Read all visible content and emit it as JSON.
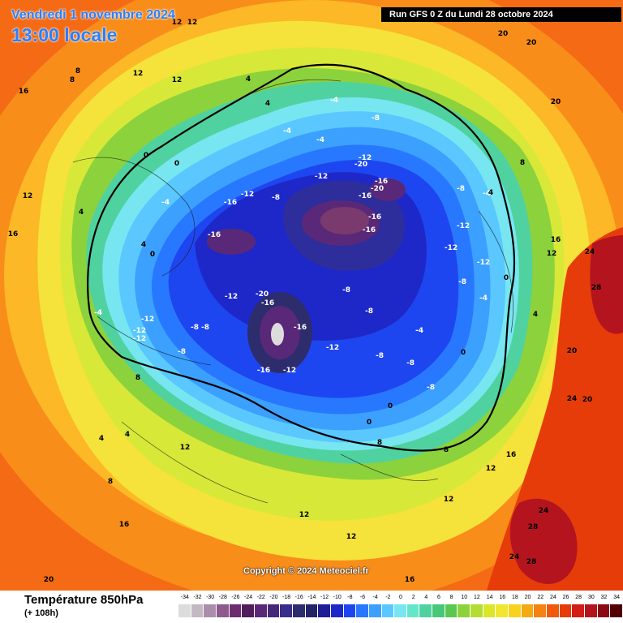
{
  "header": {
    "date": "Vendredi 1 novembre 2024",
    "time": "13:00 locale",
    "run": "Run GFS 0 Z du Lundi 28 octobre 2024"
  },
  "copyright": "Copyright © 2024 Meteociel.fr",
  "footer": {
    "parameter": "Température 850hPa",
    "lead_time": "(+ 108h)"
  },
  "legend": {
    "values": [
      "-34",
      "-32",
      "-30",
      "-28",
      "-26",
      "-24",
      "-22",
      "-20",
      "-18",
      "-16",
      "-14",
      "-12",
      "-10",
      "-8",
      "-6",
      "-4",
      "-2",
      "0",
      "2",
      "4",
      "6",
      "8",
      "10",
      "12",
      "14",
      "16",
      "18",
      "20",
      "22",
      "24",
      "26",
      "28",
      "30",
      "32",
      "34"
    ],
    "colors": [
      "#dcdcdc",
      "#c3b9c3",
      "#aa8daa",
      "#8c5a8c",
      "#6e2d6e",
      "#501e5a",
      "#5a2878",
      "#46287a",
      "#3a2c8c",
      "#2d2d6e",
      "#232366",
      "#1e1e96",
      "#1e28c8",
      "#1e46f0",
      "#2878ff",
      "#3ca0ff",
      "#5ac8ff",
      "#78e6f0",
      "#64e6c8",
      "#50d2a0",
      "#46c878",
      "#5ac850",
      "#8cd23c",
      "#b4dc32",
      "#dce628",
      "#f0e632",
      "#fad21e",
      "#f5aa14",
      "#f58214",
      "#f05a0a",
      "#e63c0a",
      "#d21e14",
      "#b4141e",
      "#8c0a14",
      "#500000"
    ],
    "map_colors": {
      "warm_edge": "#f56a14",
      "orange": "#f98d1a",
      "yellow_orange": "#fcb826",
      "yellow": "#f5e23a",
      "yellow_green": "#d8e838",
      "green_yellow": "#b4dc32",
      "green": "#8cd23c",
      "green_mid": "#50d264",
      "teal": "#64e6c8",
      "cyan": "#78e6f0",
      "light_blue": "#5ac8ff",
      "sky_blue": "#3ca0ff",
      "blue": "#2878ff",
      "deep_blue": "#1e46f0",
      "navy": "#1e28c8",
      "indigo": "#2d2d9c",
      "purple": "#5a2878",
      "violet": "#7a3a6e",
      "pale": "#dcdcdc",
      "red": "#e63c0a",
      "dark_red": "#b4141e"
    },
    "contour_labels": [
      "-20",
      "-16",
      "-12",
      "-8",
      "-4",
      "0",
      "4",
      "8",
      "12",
      "16",
      "20",
      "24",
      "28"
    ]
  }
}
